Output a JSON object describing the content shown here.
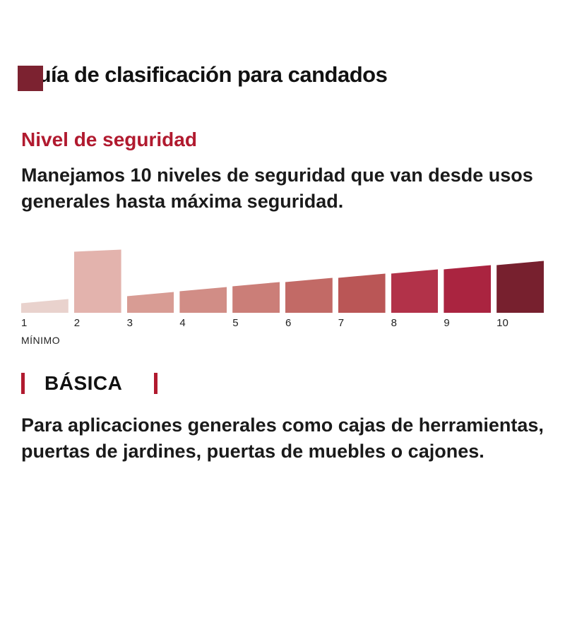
{
  "brand": {
    "logo_color": "#7c2230"
  },
  "page": {
    "title": "Guía de clasificación para candados"
  },
  "section": {
    "heading": "Nivel de seguridad",
    "heading_color": "#b11a2f",
    "description": "Manejamos 10 niveles de seguridad que van desde usos generales hasta máxima seguridad."
  },
  "chart_data": {
    "type": "bar",
    "categories": [
      "1",
      "2",
      "3",
      "4",
      "5",
      "6",
      "7",
      "8",
      "9",
      "10"
    ],
    "values": [
      20,
      90,
      30,
      37,
      44,
      50,
      56,
      62,
      68,
      74
    ],
    "highlighted_category": "2",
    "min_label": "MÍNIMO",
    "colors": [
      "#e9d2cd",
      "#e3b3ad",
      "#d89c94",
      "#d18d86",
      "#cb7e78",
      "#c26a66",
      "#ba5656",
      "#b23249",
      "#aa2440",
      "#77202e"
    ],
    "xlabel": "",
    "ylabel": "",
    "legend": "none",
    "grid": false,
    "notes": "10 security levels shown as an ascending ramp from light pink (1, mínimo) to dark maroon (10); level 2 bar is enlarged/highlighted (BÁSICA)."
  },
  "level": {
    "name": "BÁSICA",
    "description": "Para aplicaciones generales como cajas de herramientas, puertas de jardines, puertas de muebles o cajones."
  },
  "colors": {
    "accent_red": "#b11a2f",
    "text": "#111111",
    "background": "#ffffff"
  }
}
